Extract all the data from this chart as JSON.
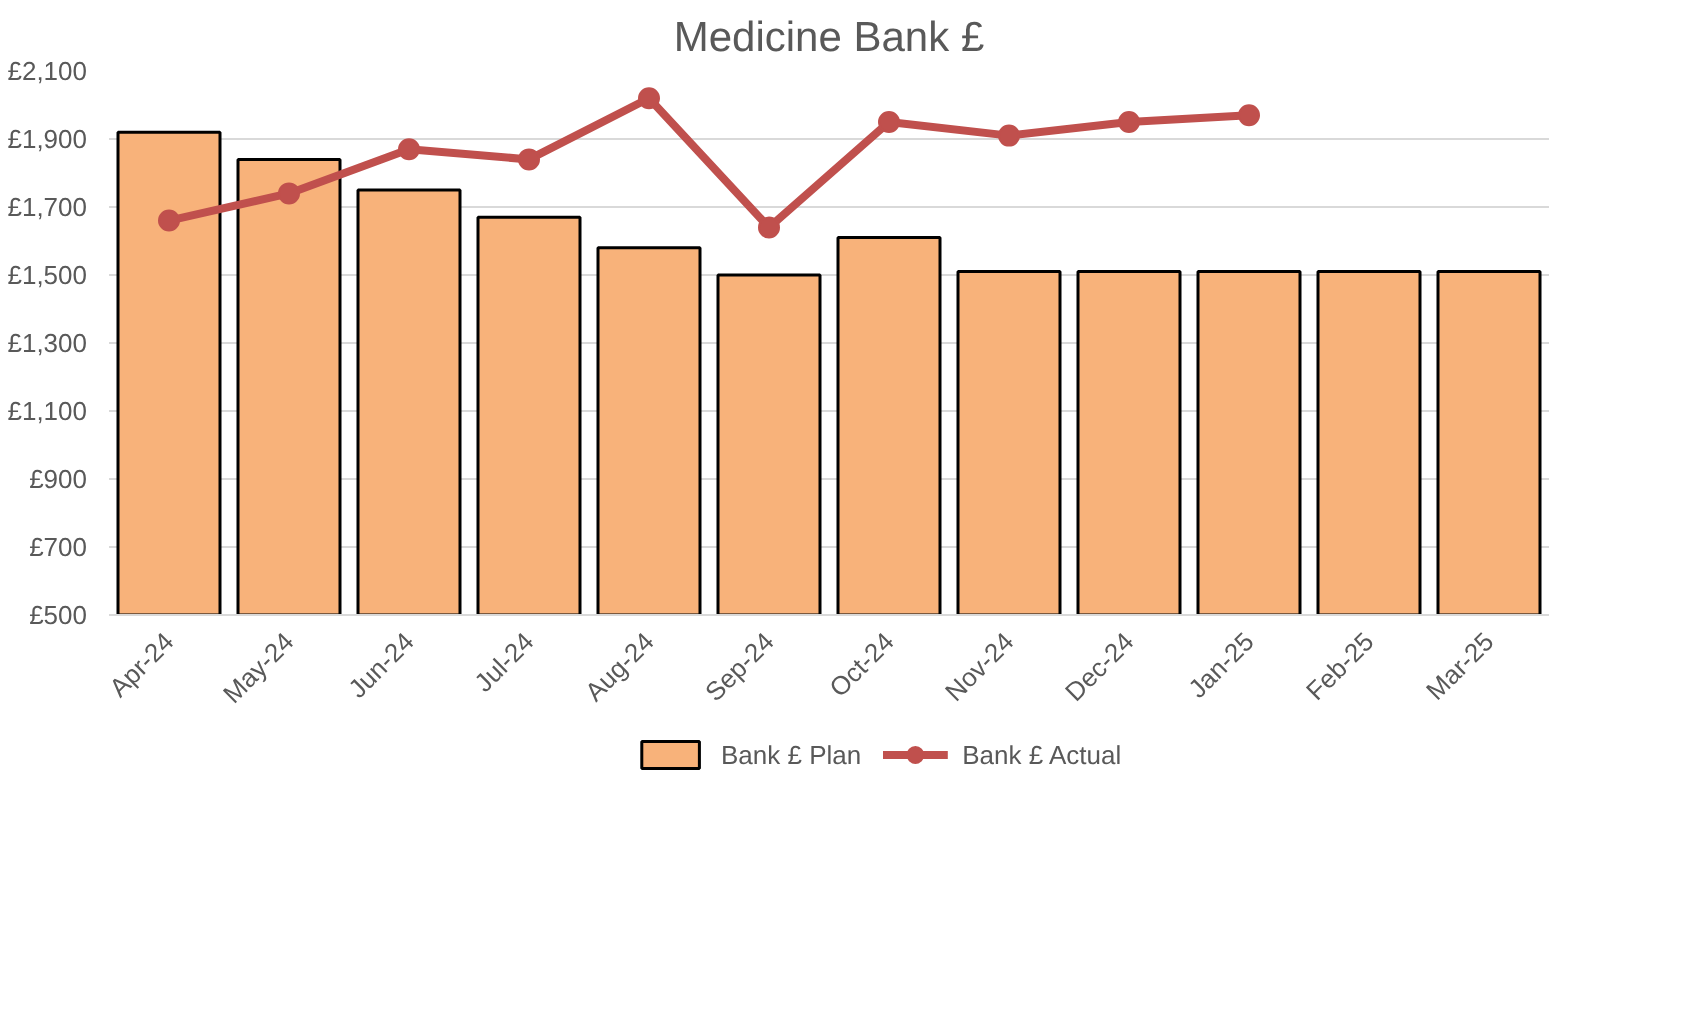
{
  "chart_data": {
    "type": "bar",
    "title": "Medicine Bank £",
    "categories": [
      "Apr-24",
      "May-24",
      "Jun-24",
      "Jul-24",
      "Aug-24",
      "Sep-24",
      "Oct-24",
      "Nov-24",
      "Dec-24",
      "Jan-25",
      "Feb-25",
      "Mar-25"
    ],
    "series": [
      {
        "name": "Bank £ Plan",
        "color": "#f8b27a",
        "values": [
          1920,
          1840,
          1750,
          1670,
          1580,
          1500,
          1610,
          1510,
          1510,
          1510,
          1510,
          1510
        ]
      },
      {
        "name": "Bank £ Actual",
        "type": "line",
        "color": "#c0504d",
        "marker": "circle",
        "values": [
          1660,
          1740,
          1870,
          1840,
          2020,
          1640,
          1950,
          1910,
          1950,
          1970,
          null,
          null
        ]
      }
    ],
    "ylim": [
      500,
      2100
    ],
    "yticks": [
      {
        "value": 500,
        "label": "£500"
      },
      {
        "value": 700,
        "label": "£700"
      },
      {
        "value": 900,
        "label": "£900"
      },
      {
        "value": 1100,
        "label": "£1,100"
      },
      {
        "value": 1300,
        "label": "£1,300"
      },
      {
        "value": 1500,
        "label": "£1,500"
      },
      {
        "value": 1700,
        "label": "£1,700"
      },
      {
        "value": 1900,
        "label": "£1,900"
      },
      {
        "value": 2100,
        "label": "£2,100"
      }
    ],
    "grid": "y",
    "legend": "bottom"
  }
}
